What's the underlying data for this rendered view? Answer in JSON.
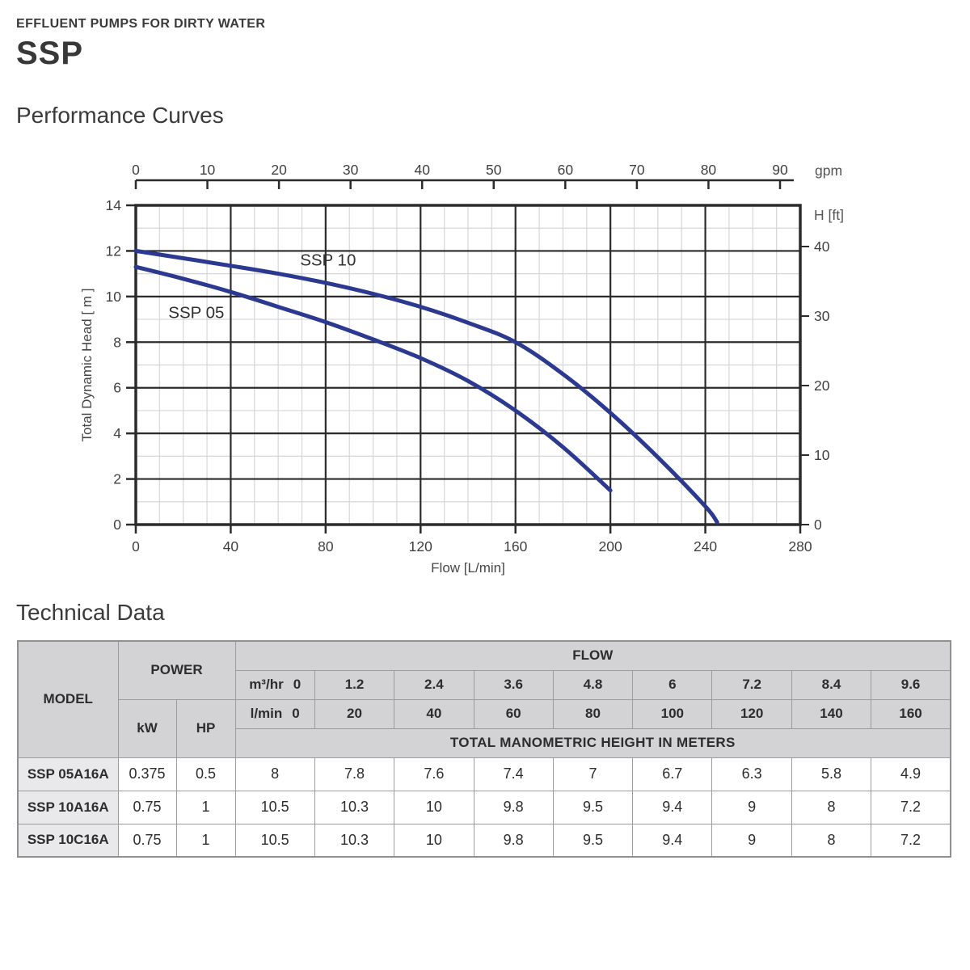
{
  "page": {
    "eyebrow": "EFFLUENT PUMPS FOR DIRTY WATER",
    "title": "SSP",
    "chart_section_title": "Performance Curves",
    "table_section_title": "Technical Data"
  },
  "colors": {
    "curve_blue": "#2b3990",
    "grid_major": "#2b2b2b",
    "grid_minor": "#d6d6d8",
    "axis_text": "#474747",
    "table_header_bg": "#d3d3d5",
    "table_model_bg": "#e9e9eb",
    "table_border": "#9c9c9f"
  },
  "chart_data": {
    "type": "line",
    "title": "Performance Curves",
    "xlabel": "Flow [L/min]",
    "ylabel": "Total Dynamic Head  [ m ]",
    "x_axis": {
      "min": 0,
      "max": 280,
      "major_tick_step": 40,
      "minor_tick_step": 10,
      "tick_labels": [
        "0",
        "40",
        "80",
        "120",
        "160",
        "200",
        "240",
        "280"
      ]
    },
    "y_axis": {
      "min": 0,
      "max": 14,
      "major_tick_step": 2,
      "minor_tick_step": 1,
      "tick_labels": [
        "0",
        "2",
        "4",
        "6",
        "8",
        "10",
        "12",
        "14"
      ]
    },
    "top_axis": {
      "title": "gpm",
      "min": 0,
      "max": 90,
      "tick_step": 10,
      "tick_labels": [
        "0",
        "10",
        "20",
        "30",
        "40",
        "50",
        "60",
        "70",
        "80",
        "90"
      ]
    },
    "right_axis": {
      "title": "H [ft]",
      "tick_values": [
        0,
        10,
        20,
        30,
        40
      ],
      "meters_per_foot": 0.3048
    },
    "grid": true,
    "legend_position": "inline-labels",
    "series": [
      {
        "name": "SSP 10",
        "label": "SSP 10",
        "label_at": [
          81,
          11.6
        ],
        "points": [
          [
            0,
            12.0
          ],
          [
            20,
            11.68
          ],
          [
            40,
            11.35
          ],
          [
            60,
            11.0
          ],
          [
            80,
            10.6
          ],
          [
            100,
            10.12
          ],
          [
            120,
            9.55
          ],
          [
            140,
            8.85
          ],
          [
            160,
            8.0
          ],
          [
            180,
            6.6
          ],
          [
            200,
            4.9
          ],
          [
            220,
            2.95
          ],
          [
            240,
            0.8
          ],
          [
            245,
            0.1
          ]
        ]
      },
      {
        "name": "SSP 05",
        "label": "SSP 05",
        "label_at": [
          25.5,
          9.3
        ],
        "points": [
          [
            0,
            11.3
          ],
          [
            20,
            10.78
          ],
          [
            40,
            10.2
          ],
          [
            60,
            9.55
          ],
          [
            80,
            8.88
          ],
          [
            100,
            8.12
          ],
          [
            120,
            7.3
          ],
          [
            140,
            6.3
          ],
          [
            160,
            5.0
          ],
          [
            180,
            3.4
          ],
          [
            200,
            1.5
          ]
        ]
      }
    ]
  },
  "table": {
    "header": {
      "model": "MODEL",
      "power": "POWER",
      "kw": "kW",
      "hp": "HP",
      "flow": "FLOW",
      "m3hr_unit": "m³/hr",
      "m3hr_values": [
        "0",
        "1.2",
        "2.4",
        "3.6",
        "4.8",
        "6",
        "7.2",
        "8.4",
        "9.6"
      ],
      "lmin_unit": "l/min",
      "lmin_values": [
        "0",
        "20",
        "40",
        "60",
        "80",
        "100",
        "120",
        "140",
        "160"
      ],
      "height_title": "TOTAL MANOMETRIC HEIGHT IN METERS"
    },
    "rows": [
      {
        "model": "SSP 05A16A",
        "kw": "0.375",
        "hp": "0.5",
        "heads": [
          "8",
          "7.8",
          "7.6",
          "7.4",
          "7",
          "6.7",
          "6.3",
          "5.8",
          "4.9"
        ]
      },
      {
        "model": "SSP 10A16A",
        "kw": "0.75",
        "hp": "1",
        "heads": [
          "10.5",
          "10.3",
          "10",
          "9.8",
          "9.5",
          "9.4",
          "9",
          "8",
          "7.2"
        ]
      },
      {
        "model": "SSP 10C16A",
        "kw": "0.75",
        "hp": "1",
        "heads": [
          "10.5",
          "10.3",
          "10",
          "9.8",
          "9.5",
          "9.4",
          "9",
          "8",
          "7.2"
        ]
      }
    ]
  }
}
